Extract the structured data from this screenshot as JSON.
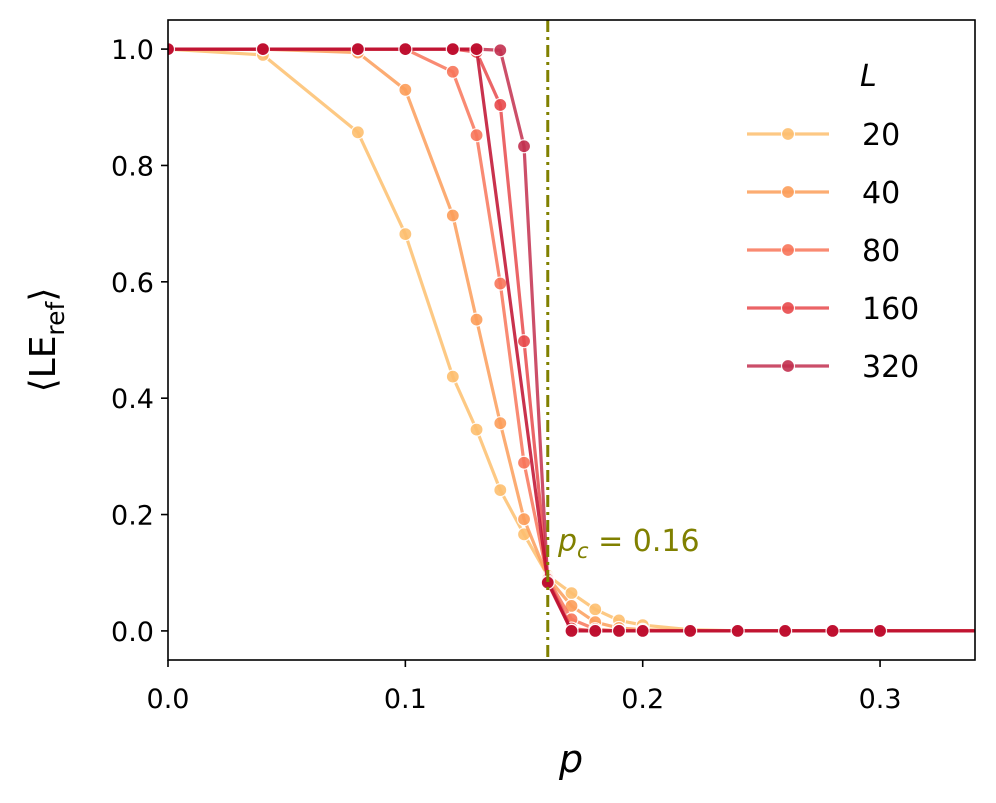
{
  "chart_data": {
    "type": "line",
    "title": "",
    "xlabel": "p",
    "ylabel_main": "⟨LE",
    "ylabel_sub": "ref",
    "ylabel_close": "⟩",
    "xlim": [
      0.0,
      0.34
    ],
    "ylim": [
      -0.05,
      1.05
    ],
    "xticks": [
      0.0,
      0.1,
      0.2,
      0.3
    ],
    "xtick_labels": [
      "0.0",
      "0.1",
      "0.2",
      "0.3"
    ],
    "yticks": [
      0.0,
      0.2,
      0.4,
      0.6,
      0.8,
      1.0
    ],
    "ytick_labels": [
      "0.0",
      "0.2",
      "0.4",
      "0.6",
      "0.8",
      "1.0"
    ],
    "legend_title": "L",
    "legend_position": "top-right",
    "grid": false,
    "critical_line": {
      "x": 0.16,
      "color": "#808000",
      "label_italic": "p",
      "label_sub": "c",
      "label_rest": " = 0.16"
    },
    "series": [
      {
        "name": "20",
        "color": "#fdbf6f",
        "x": [
          0.0,
          0.04,
          0.08,
          0.1,
          0.12,
          0.13,
          0.14,
          0.15,
          0.16,
          0.17,
          0.18,
          0.19,
          0.2,
          0.22,
          0.24,
          0.26,
          0.28,
          0.3,
          0.34
        ],
        "y": [
          1.0,
          0.99,
          0.857,
          0.682,
          0.437,
          0.346,
          0.242,
          0.166,
          0.095,
          0.065,
          0.037,
          0.018,
          0.01,
          0.002,
          0.0,
          0.0,
          0.0,
          0.0,
          0.0
        ]
      },
      {
        "name": "40",
        "color": "#fc9e5a",
        "x": [
          0.0,
          0.04,
          0.08,
          0.1,
          0.12,
          0.13,
          0.14,
          0.15,
          0.16,
          0.17,
          0.18,
          0.19,
          0.2,
          0.22,
          0.24,
          0.26,
          0.28,
          0.3,
          0.34
        ],
        "y": [
          1.0,
          1.0,
          0.994,
          0.93,
          0.714,
          0.535,
          0.357,
          0.192,
          0.092,
          0.043,
          0.015,
          0.005,
          0.002,
          0.0,
          0.0,
          0.0,
          0.0,
          0.0,
          0.0
        ]
      },
      {
        "name": "80",
        "color": "#f8765a",
        "x": [
          0.0,
          0.04,
          0.08,
          0.1,
          0.12,
          0.13,
          0.14,
          0.15,
          0.16,
          0.17,
          0.18,
          0.19,
          0.2,
          0.22,
          0.24,
          0.26,
          0.28,
          0.3,
          0.34
        ],
        "y": [
          1.0,
          1.0,
          1.0,
          1.0,
          0.961,
          0.852,
          0.597,
          0.289,
          0.09,
          0.02,
          0.003,
          0.0,
          0.0,
          0.0,
          0.0,
          0.0,
          0.0,
          0.0,
          0.0
        ]
      },
      {
        "name": "160",
        "color": "#e84a4c",
        "x": [
          0.0,
          0.04,
          0.08,
          0.1,
          0.12,
          0.13,
          0.14,
          0.15,
          0.16,
          0.17,
          0.18,
          0.19,
          0.2,
          0.22,
          0.24,
          0.26,
          0.28,
          0.3,
          0.34
        ],
        "y": [
          1.0,
          1.0,
          1.0,
          1.0,
          1.0,
          0.995,
          0.904,
          0.498,
          0.088,
          0.004,
          0.0,
          0.0,
          0.0,
          0.0,
          0.0,
          0.0,
          0.0,
          0.0,
          0.0
        ]
      },
      {
        "name": "320",
        "color": "#c3304f",
        "x": [
          0.0,
          0.04,
          0.08,
          0.1,
          0.12,
          0.13,
          0.14,
          0.15,
          0.16,
          0.17,
          0.18,
          0.19,
          0.2,
          0.22,
          0.24,
          0.26,
          0.28,
          0.3,
          0.34
        ],
        "y": [
          1.0,
          1.0,
          1.0,
          1.0,
          1.0,
          1.0,
          0.998,
          0.833,
          0.085,
          0.0,
          0.0,
          0.0,
          0.0,
          0.0,
          0.0,
          0.0,
          0.0,
          0.0,
          0.0
        ]
      }
    ],
    "overlay_series": {
      "name": "overlay",
      "color": "#bf0e2e",
      "x": [
        0.0,
        0.04,
        0.08,
        0.1,
        0.12,
        0.13,
        0.16,
        0.17,
        0.18,
        0.19,
        0.2,
        0.22,
        0.24,
        0.26,
        0.28,
        0.3,
        0.34
      ],
      "y": [
        1.0,
        1.0,
        1.0,
        1.0,
        1.0,
        1.0,
        0.083,
        0.0,
        0.0,
        0.0,
        0.0,
        0.0,
        0.0,
        0.0,
        0.0,
        0.0,
        0.0
      ],
      "markers_x": [
        0.0,
        0.04,
        0.08,
        0.1,
        0.12,
        0.13,
        0.16,
        0.17,
        0.18,
        0.19,
        0.2,
        0.22,
        0.24,
        0.26,
        0.28,
        0.3
      ]
    }
  }
}
